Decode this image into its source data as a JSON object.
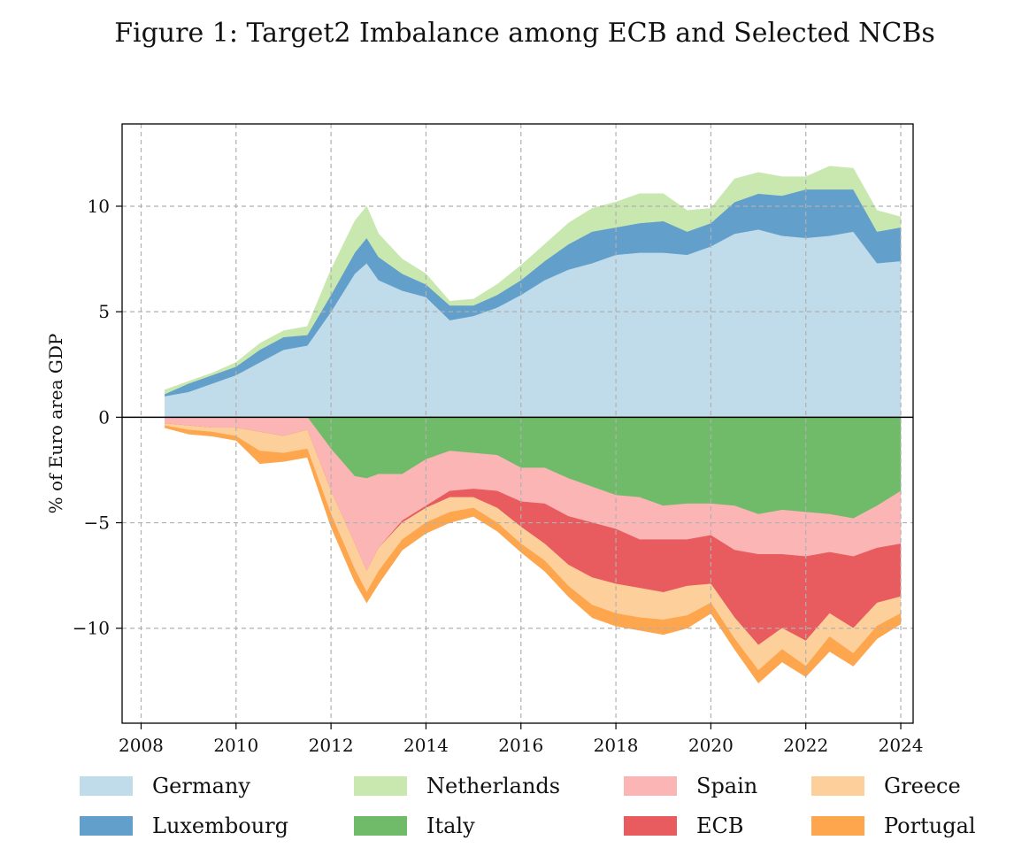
{
  "chart_data": {
    "type": "area",
    "stacked": true,
    "title": "Figure 1: Target2 Imbalance among ECB and Selected NCBs",
    "xlabel": "",
    "ylabel": "% of Euro area GDP",
    "xlim": [
      2007.6,
      2024.26
    ],
    "ylim": [
      -14.5,
      13.9
    ],
    "xticks": [
      2008,
      2010,
      2012,
      2014,
      2016,
      2018,
      2020,
      2022,
      2024
    ],
    "yticks": [
      10,
      5,
      0,
      -5,
      -10
    ],
    "ytick_labels": [
      "10",
      "5",
      "0",
      "−5",
      "−10"
    ],
    "grid": true,
    "legend_position": "bottom",
    "x": [
      2008.5,
      2009,
      2009.5,
      2010,
      2010.5,
      2011,
      2011.5,
      2012,
      2012.5,
      2012.75,
      2013,
      2013.5,
      2014,
      2014.5,
      2015,
      2015.5,
      2016,
      2016.5,
      2017,
      2017.5,
      2018,
      2018.5,
      2019,
      2019.5,
      2020,
      2020.5,
      2021,
      2021.5,
      2022,
      2022.5,
      2023,
      2023.5,
      2024
    ],
    "series": [
      {
        "name": "Germany",
        "color": "#c0dbe9",
        "stack": "positive",
        "values": [
          1.0,
          1.2,
          1.6,
          2.0,
          2.6,
          3.2,
          3.4,
          5.0,
          6.8,
          7.3,
          6.5,
          6.0,
          5.7,
          4.6,
          4.8,
          5.2,
          5.8,
          6.5,
          7.0,
          7.3,
          7.7,
          7.8,
          7.8,
          7.7,
          8.1,
          8.7,
          8.9,
          8.6,
          8.5,
          8.6,
          8.8,
          7.3,
          7.4
        ]
      },
      {
        "name": "Luxembourg",
        "color": "#62a0cb",
        "stack": "positive",
        "values": [
          0.1,
          0.4,
          0.4,
          0.4,
          0.6,
          0.6,
          0.5,
          0.8,
          1.0,
          1.2,
          1.1,
          0.8,
          0.6,
          0.7,
          0.5,
          0.6,
          0.7,
          0.9,
          1.2,
          1.5,
          1.3,
          1.4,
          1.5,
          1.1,
          1.1,
          1.5,
          1.7,
          1.9,
          2.3,
          2.2,
          2.0,
          1.5,
          1.6
        ]
      },
      {
        "name": "Netherlands",
        "color": "#c9e8b0",
        "stack": "positive",
        "values": [
          0.2,
          0.1,
          0.1,
          0.2,
          0.3,
          0.3,
          0.4,
          1.2,
          1.5,
          1.5,
          1.1,
          0.7,
          0.5,
          0.2,
          0.3,
          0.5,
          0.7,
          0.8,
          1.0,
          1.1,
          1.2,
          1.4,
          1.3,
          1.0,
          0.7,
          1.1,
          1.0,
          0.9,
          0.6,
          1.1,
          1.0,
          1.0,
          0.5
        ]
      },
      {
        "name": "Italy",
        "color": "#70bb6a",
        "stack": "negative",
        "values": [
          0,
          0,
          0,
          0,
          0,
          0,
          0,
          -1.5,
          -2.8,
          -2.9,
          -2.7,
          -2.7,
          -2.0,
          -1.6,
          -1.7,
          -1.8,
          -2.4,
          -2.4,
          -2.9,
          -3.3,
          -3.7,
          -3.8,
          -4.2,
          -4.1,
          -4.1,
          -4.2,
          -4.6,
          -4.4,
          -4.5,
          -4.6,
          -4.8,
          -4.2,
          -3.5
        ]
      },
      {
        "name": "Spain",
        "color": "#fbb5b5",
        "stack": "negative",
        "values": [
          -0.3,
          -0.4,
          -0.5,
          -0.5,
          -0.7,
          -0.9,
          -0.6,
          -2.0,
          -3.2,
          -4.4,
          -3.5,
          -2.2,
          -2.2,
          -1.9,
          -1.7,
          -1.7,
          -1.6,
          -1.7,
          -1.8,
          -1.7,
          -1.6,
          -2.0,
          -1.6,
          -1.7,
          -1.5,
          -2.1,
          -1.9,
          -2.1,
          -2.1,
          -1.8,
          -1.8,
          -2.0,
          -2.5
        ]
      },
      {
        "name": "ECB",
        "color": "#e85c5f",
        "stack": "negative",
        "values": [
          0,
          0,
          0,
          0,
          0,
          0,
          0,
          0,
          0,
          0,
          0,
          -0.1,
          -0.1,
          -0.3,
          -0.4,
          -0.8,
          -1.2,
          -1.9,
          -2.3,
          -2.6,
          -2.6,
          -2.3,
          -2.5,
          -2.2,
          -2.3,
          -3.2,
          -4.3,
          -3.5,
          -4.0,
          -2.9,
          -3.4,
          -2.6,
          -2.5
        ]
      },
      {
        "name": "Greece",
        "color": "#fdd09b",
        "stack": "negative",
        "values": [
          -0.1,
          -0.2,
          -0.2,
          -0.4,
          -0.9,
          -0.8,
          -0.9,
          -1.1,
          -1.2,
          -1.0,
          -1.1,
          -0.8,
          -0.7,
          -0.7,
          -0.5,
          -0.7,
          -0.8,
          -0.8,
          -1.0,
          -1.3,
          -1.4,
          -1.4,
          -1.3,
          -1.4,
          -0.9,
          -1.0,
          -1.2,
          -1.0,
          -1.2,
          -1.1,
          -1.2,
          -1.1,
          -0.8
        ]
      },
      {
        "name": "Portugal",
        "color": "#fda64e",
        "stack": "negative",
        "values": [
          -0.1,
          -0.2,
          -0.2,
          -0.2,
          -0.6,
          -0.4,
          -0.4,
          -0.6,
          -0.6,
          -0.5,
          -0.6,
          -0.5,
          -0.5,
          -0.5,
          -0.4,
          -0.4,
          -0.4,
          -0.5,
          -0.5,
          -0.6,
          -0.6,
          -0.6,
          -0.7,
          -0.6,
          -0.5,
          -0.5,
          -0.6,
          -0.6,
          -0.5,
          -0.7,
          -0.6,
          -0.6,
          -0.5
        ]
      }
    ],
    "legend_order": [
      "Germany",
      "Netherlands",
      "Spain",
      "Greece",
      "Luxembourg",
      "Italy",
      "ECB",
      "Portugal"
    ]
  }
}
